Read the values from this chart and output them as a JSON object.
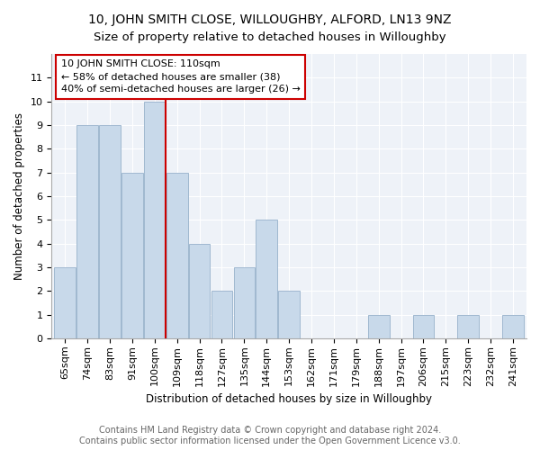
{
  "title": "10, JOHN SMITH CLOSE, WILLOUGHBY, ALFORD, LN13 9NZ",
  "subtitle": "Size of property relative to detached houses in Willoughby",
  "xlabel": "Distribution of detached houses by size in Willoughby",
  "ylabel": "Number of detached properties",
  "categories": [
    "65sqm",
    "74sqm",
    "83sqm",
    "91sqm",
    "100sqm",
    "109sqm",
    "118sqm",
    "127sqm",
    "135sqm",
    "144sqm",
    "153sqm",
    "162sqm",
    "171sqm",
    "179sqm",
    "188sqm",
    "197sqm",
    "206sqm",
    "215sqm",
    "223sqm",
    "232sqm",
    "241sqm"
  ],
  "values": [
    3,
    9,
    9,
    7,
    10,
    7,
    4,
    2,
    3,
    5,
    2,
    0,
    0,
    0,
    1,
    0,
    1,
    0,
    1,
    0,
    1
  ],
  "bar_color": "#c8d9ea",
  "bar_edgecolor": "#a0b8d0",
  "vline_x": 4.5,
  "annotation_title": "10 JOHN SMITH CLOSE: 110sqm",
  "annotation_line1": "← 58% of detached houses are smaller (38)",
  "annotation_line2": "40% of semi-detached houses are larger (26) →",
  "footer": "Contains HM Land Registry data © Crown copyright and database right 2024.\nContains public sector information licensed under the Open Government Licence v3.0.",
  "ylim": [
    0,
    12
  ],
  "yticks": [
    0,
    1,
    2,
    3,
    4,
    5,
    6,
    7,
    8,
    9,
    10,
    11
  ],
  "plot_bg_color": "#eef2f8",
  "vline_color": "#cc0000",
  "title_fontsize": 10,
  "subtitle_fontsize": 9.5,
  "axis_label_fontsize": 8.5,
  "tick_fontsize": 8,
  "annotation_fontsize": 8,
  "footer_fontsize": 7
}
